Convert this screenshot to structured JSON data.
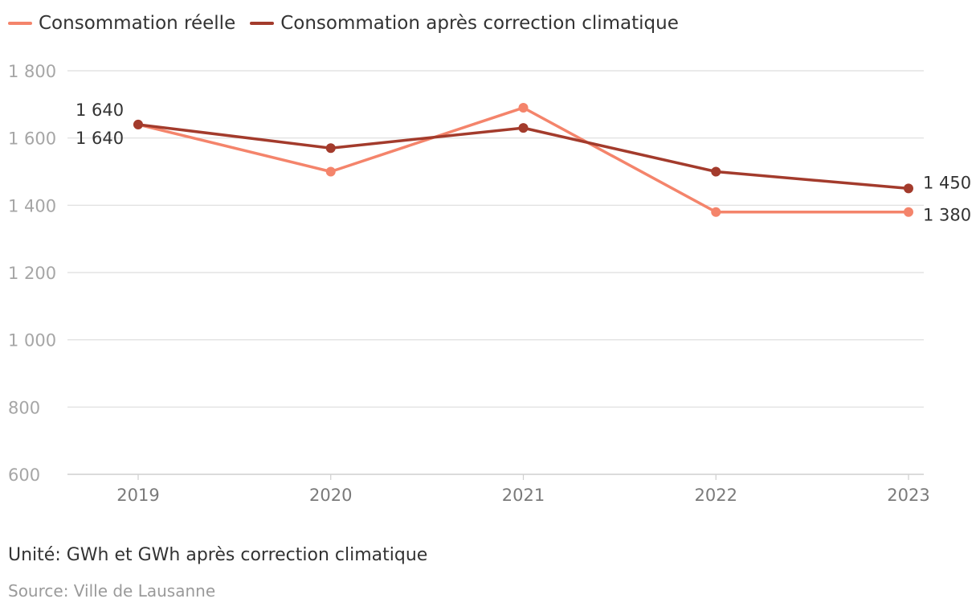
{
  "colors": {
    "reelle": "#f4846b",
    "corrigee": "#a33b2c",
    "grid": "#dddddd",
    "tick": "#a6a6a6"
  },
  "chart_data": {
    "type": "line",
    "categories": [
      "2019",
      "2020",
      "2021",
      "2022",
      "2023"
    ],
    "series": [
      {
        "name": "Consommation réelle",
        "values": [
          1640,
          1500,
          1690,
          1380,
          1380
        ],
        "labels": {
          "0": "1 640",
          "4": "1 380"
        }
      },
      {
        "name": "Consommation après correction climatique",
        "values": [
          1640,
          1570,
          1630,
          1500,
          1450
        ],
        "labels": {
          "0": "1 640",
          "4": "1 450"
        }
      }
    ],
    "y_ticks": [
      {
        "value": 600,
        "label": "600"
      },
      {
        "value": 800,
        "label": "800"
      },
      {
        "value": 1000,
        "label": "1 000"
      },
      {
        "value": 1200,
        "label": "1 200"
      },
      {
        "value": 1400,
        "label": "1 400"
      },
      {
        "value": 1600,
        "label": "1 600"
      },
      {
        "value": 1800,
        "label": "1 800"
      }
    ],
    "ylim": [
      600,
      1800
    ],
    "grid": true,
    "legend": "top-left"
  },
  "footer": {
    "unit": "Unité: GWh et GWh après correction climatique",
    "source": "Source: Ville de Lausanne"
  }
}
